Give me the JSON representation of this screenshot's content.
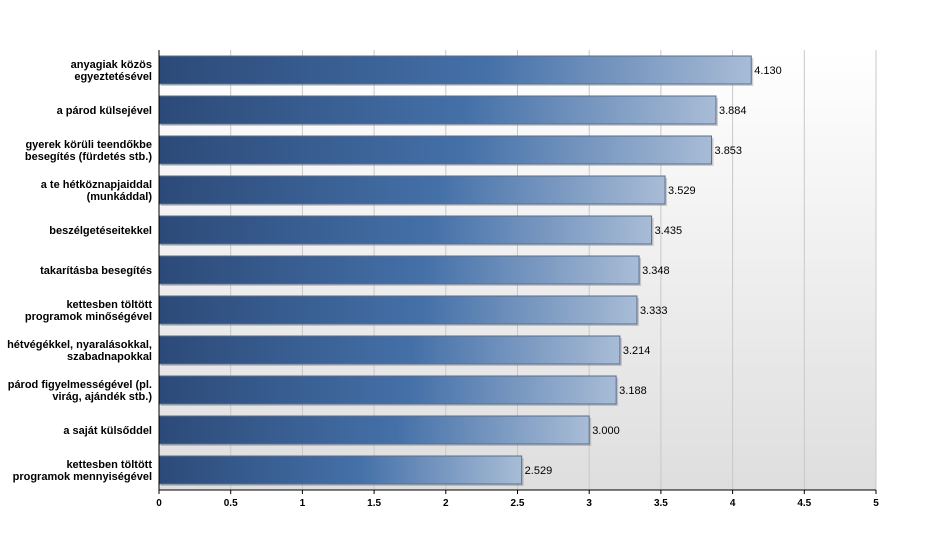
{
  "chart_data": {
    "type": "bar",
    "orientation": "horizontal",
    "categories": [
      [
        "anyagiak közös",
        "egyeztetésével"
      ],
      [
        "a párod külsejével"
      ],
      [
        "gyerek körüli teendőkbe",
        "besegítés (fürdetés stb.)"
      ],
      [
        "a te hétköznapjaiddal",
        "(munkáddal)"
      ],
      [
        "beszélgetéseitekkel"
      ],
      [
        "takarításba besegítés"
      ],
      [
        "kettesben töltött",
        "programok minőségével"
      ],
      [
        "hétvégékkel, nyaralásokkal,",
        "szabadnapokkal"
      ],
      [
        "párod figyelmességével (pl.",
        "virág, ajándék stb.)"
      ],
      [
        "a saját külsőddel"
      ],
      [
        "kettesben töltött",
        "programok mennyiségével"
      ]
    ],
    "values": [
      4.13,
      3.884,
      3.853,
      3.529,
      3.435,
      3.348,
      3.333,
      3.214,
      3.188,
      3.0,
      2.529
    ],
    "value_labels": [
      "4.130",
      "3.884",
      "3.853",
      "3.529",
      "3.435",
      "3.348",
      "3.333",
      "3.214",
      "3.188",
      "3.000",
      "2.529"
    ],
    "xlim": [
      0,
      5
    ],
    "x_ticks": [
      "0",
      "0.5",
      "1",
      "1.5",
      "2",
      "2.5",
      "3",
      "3.5",
      "4",
      "4.5",
      "5"
    ],
    "grid": true,
    "colors": {
      "bar_dark": "#2c4a78",
      "bar_mid": "#4470a8",
      "bar_light": "#a8bcd6",
      "bar_border": "#5a6f8e",
      "grid": "#c8c8c8",
      "plot_bg_top": "#ffffff",
      "plot_bg_bottom": "#dedede"
    }
  }
}
